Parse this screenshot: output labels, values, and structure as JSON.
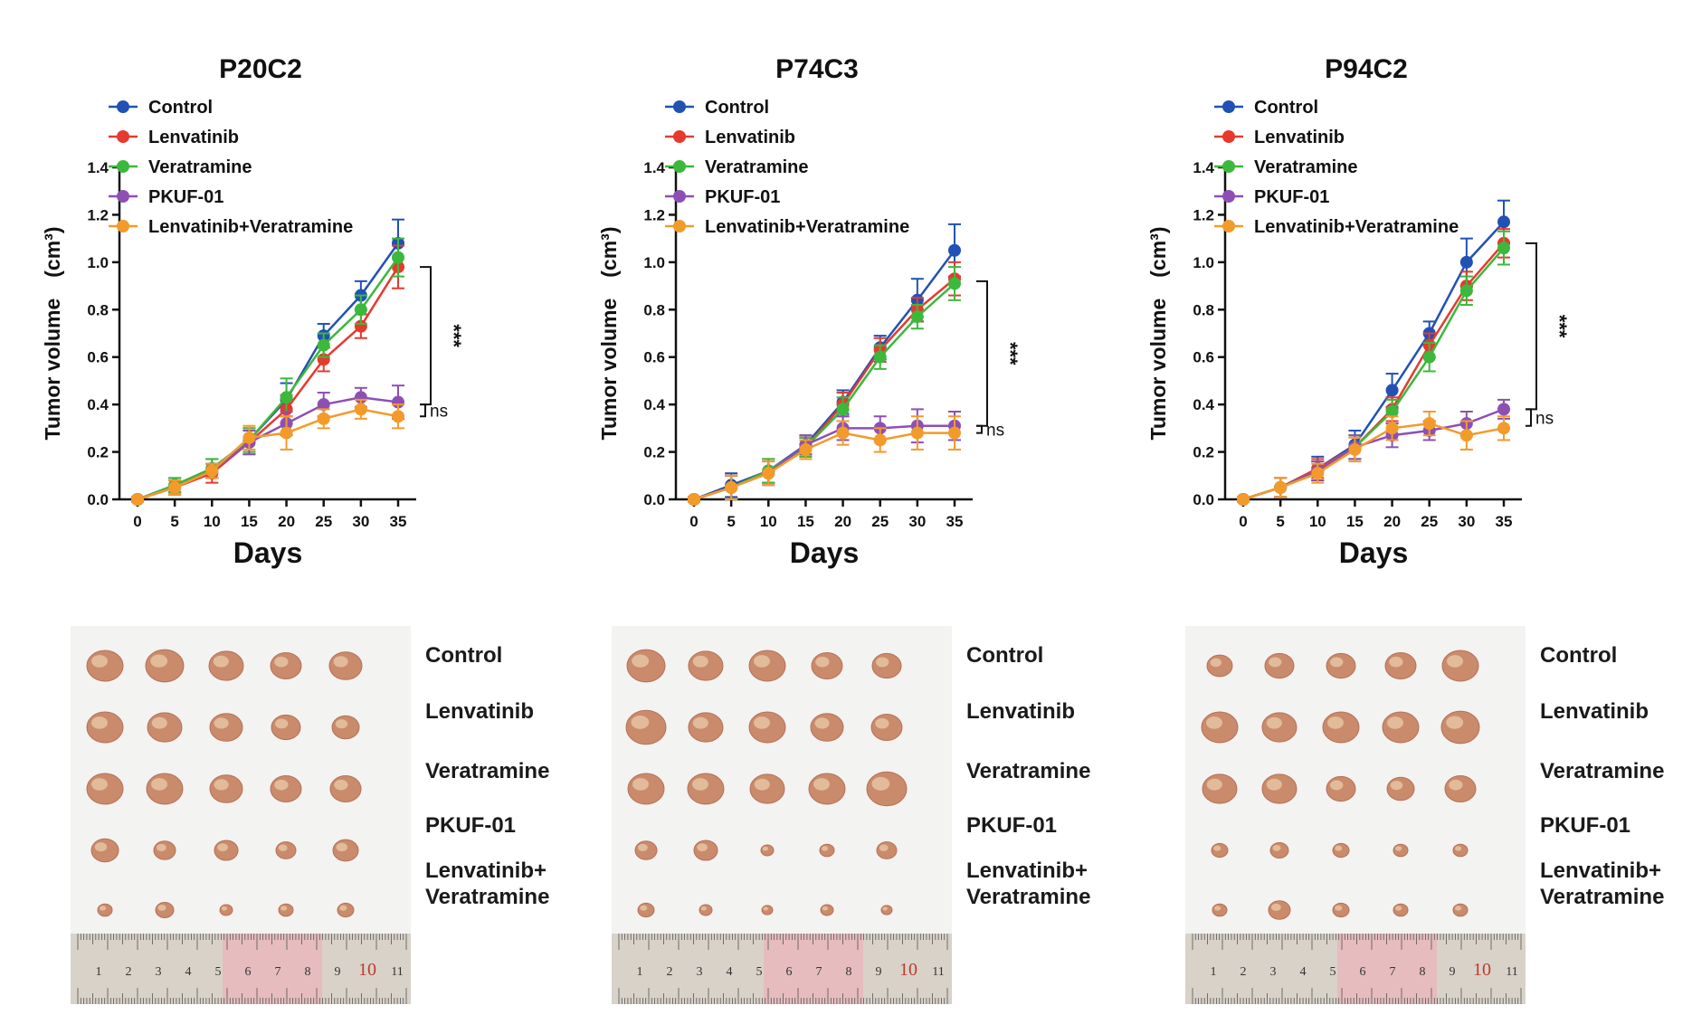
{
  "colors": {
    "Control": "#2251b5",
    "Lenvatinib": "#e63a2e",
    "Veratramine": "#3cb83c",
    "PKUF-01": "#8e4fb5",
    "Lenvatinib+Veratramine": "#f29b2a",
    "axis": "#111111",
    "tumor": "#c98b6b",
    "ruler": "#d9d2c9",
    "ruler_pink": "#e8b7bd",
    "ruler_number": "#333333",
    "ruler_number_red": "#c0392b"
  },
  "chart_data": [
    {
      "type": "line",
      "title": "P20C2",
      "xlabel": "Days",
      "ylabel": "Tumor volume　(cm³)",
      "x": [
        0,
        5,
        10,
        15,
        20,
        25,
        30,
        35
      ],
      "x_tick_labels": [
        "0",
        "5",
        "10",
        "15",
        "20",
        "25",
        "30",
        "35"
      ],
      "ylim": [
        0,
        1.4
      ],
      "y_ticks": [
        0,
        0.2,
        0.4,
        0.6,
        0.8,
        1.0,
        1.2,
        1.4
      ],
      "y_tick_labels": [
        "0.0",
        "0.2",
        "0.4",
        "0.6",
        "0.8",
        "1.0",
        "1.2",
        "1.4"
      ],
      "legend_labels": [
        "Control",
        " Lenvatinib",
        "Veratramine",
        " PKUF-01",
        "Lenvatinib+Veratramine"
      ],
      "series": [
        {
          "name": "Control",
          "values": [
            0.0,
            0.06,
            0.13,
            0.25,
            0.42,
            0.69,
            0.86,
            1.08
          ],
          "errors": [
            0.01,
            0.03,
            0.04,
            0.05,
            0.07,
            0.05,
            0.06,
            0.1
          ]
        },
        {
          "name": "Lenvatinib",
          "values": [
            0.0,
            0.05,
            0.11,
            0.24,
            0.38,
            0.59,
            0.73,
            0.98
          ],
          "errors": [
            0.01,
            0.03,
            0.04,
            0.05,
            0.06,
            0.05,
            0.05,
            0.09
          ]
        },
        {
          "name": "Veratramine",
          "values": [
            0.0,
            0.06,
            0.13,
            0.25,
            0.43,
            0.65,
            0.8,
            1.02
          ],
          "errors": [
            0.01,
            0.03,
            0.04,
            0.05,
            0.08,
            0.05,
            0.06,
            0.08
          ]
        },
        {
          "name": "PKUF-01",
          "values": [
            0.0,
            0.05,
            0.12,
            0.24,
            0.32,
            0.4,
            0.43,
            0.41
          ],
          "errors": [
            0.01,
            0.03,
            0.03,
            0.05,
            0.05,
            0.05,
            0.04,
            0.07
          ]
        },
        {
          "name": "Lenvatinib+Veratramine",
          "values": [
            0.0,
            0.05,
            0.12,
            0.26,
            0.28,
            0.34,
            0.38,
            0.35
          ],
          "errors": [
            0.01,
            0.03,
            0.03,
            0.05,
            0.07,
            0.04,
            0.04,
            0.05
          ]
        }
      ],
      "significance": [
        {
          "label": "***",
          "from": "Control",
          "to": "PKUF-01",
          "y_top": 0.98,
          "y_bottom": 0.4
        },
        {
          "label": "ns",
          "from": "PKUF-01",
          "to": "Lenvatinib+Veratramine",
          "y_top": 0.4,
          "y_bottom": 0.35
        }
      ]
    },
    {
      "type": "line",
      "title": "P74C3",
      "xlabel": "Days",
      "ylabel": "Tumor volume　(cm³)",
      "x": [
        0,
        5,
        10,
        15,
        20,
        25,
        30,
        35
      ],
      "x_tick_labels": [
        "0",
        "5",
        "10",
        "15",
        "20",
        "25",
        "30",
        "35"
      ],
      "ylim": [
        0,
        1.4
      ],
      "y_ticks": [
        0,
        0.2,
        0.4,
        0.6,
        0.8,
        1.0,
        1.2,
        1.4
      ],
      "y_tick_labels": [
        "0.0",
        "0.2",
        "0.4",
        "0.6",
        "0.8",
        "1.0",
        "1.2",
        "1.4"
      ],
      "legend_labels": [
        "Control",
        " Lenvatinib",
        "Veratramine",
        " PKUF-01",
        "Lenvatinib+Veratramine"
      ],
      "series": [
        {
          "name": "Control",
          "values": [
            0.0,
            0.06,
            0.12,
            0.23,
            0.41,
            0.64,
            0.84,
            1.05
          ],
          "errors": [
            0.01,
            0.05,
            0.05,
            0.04,
            0.05,
            0.05,
            0.09,
            0.11
          ]
        },
        {
          "name": "Lenvatinib",
          "values": [
            0.0,
            0.05,
            0.12,
            0.22,
            0.4,
            0.63,
            0.8,
            0.93
          ],
          "errors": [
            0.01,
            0.05,
            0.05,
            0.04,
            0.05,
            0.05,
            0.05,
            0.07
          ]
        },
        {
          "name": "Veratramine",
          "values": [
            0.0,
            0.05,
            0.12,
            0.22,
            0.38,
            0.6,
            0.77,
            0.91
          ],
          "errors": [
            0.01,
            0.05,
            0.05,
            0.04,
            0.05,
            0.05,
            0.05,
            0.07
          ]
        },
        {
          "name": "PKUF-01",
          "values": [
            0.0,
            0.05,
            0.11,
            0.23,
            0.3,
            0.3,
            0.31,
            0.31
          ],
          "errors": [
            0.01,
            0.05,
            0.05,
            0.04,
            0.05,
            0.05,
            0.07,
            0.06
          ]
        },
        {
          "name": "Lenvatinib+Veratramine",
          "values": [
            0.0,
            0.05,
            0.11,
            0.21,
            0.28,
            0.25,
            0.28,
            0.28
          ],
          "errors": [
            0.01,
            0.05,
            0.05,
            0.04,
            0.05,
            0.05,
            0.07,
            0.07
          ]
        }
      ],
      "significance": [
        {
          "label": "***",
          "from": "Control",
          "to": "PKUF-01",
          "y_top": 0.92,
          "y_bottom": 0.31
        },
        {
          "label": "ns",
          "from": "PKUF-01",
          "to": "Lenvatinib+Veratramine",
          "y_top": 0.31,
          "y_bottom": 0.28
        }
      ]
    },
    {
      "type": "line",
      "title": "P94C2",
      "xlabel": "Days",
      "ylabel": "Tumor volume　(cm³)",
      "x": [
        0,
        5,
        10,
        15,
        20,
        25,
        30,
        35
      ],
      "x_tick_labels": [
        "0",
        "5",
        "10",
        "15",
        "20",
        "25",
        "30",
        "35"
      ],
      "ylim": [
        0,
        1.4
      ],
      "y_ticks": [
        0,
        0.2,
        0.4,
        0.6,
        0.8,
        1.0,
        1.2,
        1.4
      ],
      "y_tick_labels": [
        "0.0",
        "0.2",
        "0.4",
        "0.6",
        "0.8",
        "1.0",
        "1.2",
        "1.4"
      ],
      "legend_labels": [
        "Control",
        "Lenvatinib",
        "Veratramine",
        "PKUF-01",
        "Lenvatinib+Veratramine"
      ],
      "series": [
        {
          "name": "Control",
          "values": [
            0.0,
            0.05,
            0.13,
            0.23,
            0.46,
            0.7,
            1.0,
            1.17
          ],
          "errors": [
            0.01,
            0.04,
            0.05,
            0.06,
            0.07,
            0.05,
            0.1,
            0.09
          ]
        },
        {
          "name": "Lenvatinib",
          "values": [
            0.0,
            0.05,
            0.13,
            0.22,
            0.38,
            0.65,
            0.9,
            1.08
          ],
          "errors": [
            0.01,
            0.04,
            0.04,
            0.05,
            0.05,
            0.05,
            0.06,
            0.06
          ]
        },
        {
          "name": "Veratramine",
          "values": [
            0.0,
            0.05,
            0.12,
            0.22,
            0.37,
            0.6,
            0.88,
            1.06
          ],
          "errors": [
            0.01,
            0.04,
            0.04,
            0.05,
            0.05,
            0.06,
            0.06,
            0.07
          ]
        },
        {
          "name": "PKUF-01",
          "values": [
            0.0,
            0.05,
            0.12,
            0.22,
            0.27,
            0.29,
            0.32,
            0.38
          ],
          "errors": [
            0.01,
            0.04,
            0.04,
            0.05,
            0.05,
            0.04,
            0.05,
            0.04
          ]
        },
        {
          "name": "Lenvatinib+Veratramine",
          "values": [
            0.0,
            0.05,
            0.11,
            0.21,
            0.3,
            0.32,
            0.27,
            0.3
          ],
          "errors": [
            0.01,
            0.04,
            0.04,
            0.05,
            0.05,
            0.05,
            0.06,
            0.05
          ]
        }
      ],
      "significance": [
        {
          "label": "***",
          "from": "Control",
          "to": "PKUF-01",
          "y_top": 1.08,
          "y_bottom": 0.38
        },
        {
          "label": "ns",
          "from": "PKUF-01",
          "to": "Lenvatinib+Veratramine",
          "y_top": 0.38,
          "y_bottom": 0.31
        }
      ]
    }
  ],
  "photos": [
    {
      "name": "P20C2",
      "row_labels": [
        "Control",
        "Lenvatinib",
        "Veratramine",
        "PKUF-01",
        "Lenvatinib+\nVeratramine"
      ],
      "tumor_sizes": [
        [
          1.0,
          1.05,
          0.95,
          0.85,
          0.9
        ],
        [
          1.0,
          0.95,
          0.9,
          0.8,
          0.75
        ],
        [
          1.0,
          1.0,
          0.9,
          0.85,
          0.85
        ],
        [
          0.75,
          0.6,
          0.65,
          0.55,
          0.7
        ],
        [
          0.4,
          0.5,
          0.35,
          0.4,
          0.45
        ]
      ],
      "ruler_numbers": [
        "1",
        "2",
        "3",
        "4",
        "5",
        "6",
        "7",
        "8",
        "9",
        "10",
        "11"
      ]
    },
    {
      "name": "P74C3",
      "row_labels": [
        "Control",
        "Lenvatinib",
        "Veratramine",
        "PKUF-01",
        "Lenvatinib+\nVeratramine"
      ],
      "tumor_sizes": [
        [
          1.05,
          0.95,
          1.0,
          0.85,
          0.8
        ],
        [
          1.1,
          0.95,
          1.0,
          0.9,
          0.85
        ],
        [
          1.0,
          1.0,
          0.95,
          1.0,
          1.1
        ],
        [
          0.6,
          0.65,
          0.35,
          0.4,
          0.55
        ],
        [
          0.45,
          0.35,
          0.3,
          0.35,
          0.3
        ]
      ],
      "ruler_numbers": [
        "1",
        "2",
        "3",
        "4",
        "5",
        "6",
        "7",
        "8",
        "9",
        "10",
        "11"
      ]
    },
    {
      "name": "P94C2",
      "row_labels": [
        "Control",
        "Lenvatinib",
        "Veratramine",
        "PKUF-01",
        "Lenvatinib+\nVeratramine"
      ],
      "tumor_sizes": [
        [
          0.7,
          0.8,
          0.8,
          0.85,
          1.0
        ],
        [
          1.0,
          0.95,
          1.0,
          1.0,
          1.05
        ],
        [
          0.95,
          0.95,
          0.8,
          0.75,
          0.85
        ],
        [
          0.45,
          0.5,
          0.45,
          0.4,
          0.4
        ],
        [
          0.4,
          0.6,
          0.45,
          0.4,
          0.4
        ]
      ],
      "ruler_numbers": [
        "1",
        "2",
        "3",
        "4",
        "5",
        "6",
        "7",
        "8",
        "9",
        "10",
        "11"
      ]
    }
  ]
}
